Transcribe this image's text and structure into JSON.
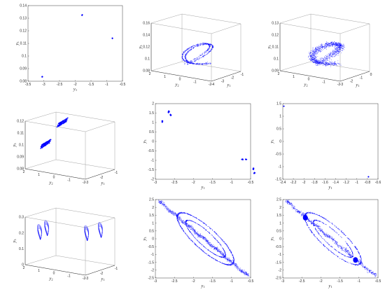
{
  "figure": {
    "accent_color": "#0000ff"
  },
  "chart_data": [
    {
      "id": "a",
      "type": "scatter",
      "dims": "2d",
      "xlabel": "y1",
      "ylabel": "y3",
      "xlim": [
        -3.5,
        -0.5
      ],
      "ylim": [
        0.08,
        0.14
      ],
      "xticks": [
        "-3.5",
        "-3",
        "-2.5",
        "-2",
        "-1.5",
        "-1",
        "-0.5"
      ],
      "yticks": [
        "0.08",
        "0.09",
        "0.1",
        "0.11",
        "0.12",
        "0.13",
        "0.14"
      ],
      "clusters": [
        {
          "x": -3.05,
          "y": 0.0835,
          "spread": [
            0.02,
            0.0004
          ],
          "n": 8
        },
        {
          "x": -1.78,
          "y": 0.1325,
          "spread": [
            0.02,
            0.0005
          ],
          "n": 8
        },
        {
          "x": -0.82,
          "y": 0.114,
          "spread": [
            0.01,
            0.0003
          ],
          "n": 6
        }
      ]
    },
    {
      "id": "b",
      "type": "scatter",
      "dims": "3d",
      "xlabel": "y1",
      "ylabel": "y2",
      "zlabel": "y3",
      "zticks": [
        "0.08",
        "0.1",
        "0.12",
        "0.14",
        "0.16"
      ],
      "xticks": [
        "-4",
        "-3",
        "-2",
        "-1"
      ],
      "yticks": [
        "2",
        "1",
        "0",
        "-1",
        "-2"
      ],
      "shape": "s-curve",
      "points": 900
    },
    {
      "id": "c",
      "type": "scatter",
      "dims": "3d",
      "xlabel": "y1",
      "ylabel": "y2",
      "zlabel": "y3",
      "zticks": [
        "0.09",
        "0.1",
        "0.11",
        "0.12",
        "0.13"
      ],
      "xticks": [
        "-3",
        "-2",
        "-1",
        "0"
      ],
      "yticks": [
        "2",
        "1",
        "0",
        "-1",
        "-2"
      ],
      "shape": "s-curve-diffuse",
      "points": 1400
    },
    {
      "id": "d",
      "type": "scatter",
      "dims": "3d",
      "xlabel": "y1",
      "ylabel": "y2",
      "zlabel": "y3",
      "zticks": [
        "0.08",
        "0.09",
        "0.1",
        "0.11",
        "0.12"
      ],
      "xticks": [
        "-3",
        "-2",
        "-1"
      ],
      "yticks": [
        "2",
        "1",
        "0",
        "-1",
        "-2"
      ],
      "shape": "bands",
      "points": 500
    },
    {
      "id": "e",
      "type": "scatter",
      "dims": "2d",
      "xlabel": "y1",
      "ylabel": "y3",
      "xlim": [
        -3,
        -0.5
      ],
      "ylim": [
        -2,
        2
      ],
      "xticks": [
        "-3",
        "-2.5",
        "-2",
        "-1.5",
        "-1",
        "-0.5"
      ],
      "yticks": [
        "-2",
        "-1.5",
        "-1",
        "-0.5",
        "0",
        "0.5",
        "1",
        "1.5",
        "2"
      ],
      "clusters": [
        {
          "x": -2.65,
          "y": 1.55,
          "spread": [
            0.03,
            0.08
          ],
          "n": 10
        },
        {
          "x": -2.6,
          "y": 1.4,
          "spread": [
            0.02,
            0.06
          ],
          "n": 8
        },
        {
          "x": -2.82,
          "y": 1.05,
          "spread": [
            0.02,
            0.08
          ],
          "n": 10
        },
        {
          "x": -0.72,
          "y": -0.95,
          "spread": [
            0.03,
            0.02
          ],
          "n": 8
        },
        {
          "x": -0.62,
          "y": -0.95,
          "spread": [
            0.03,
            0.02
          ],
          "n": 8
        },
        {
          "x": -0.43,
          "y": -1.45,
          "spread": [
            0.015,
            0.08
          ],
          "n": 10
        },
        {
          "x": -0.4,
          "y": -1.65,
          "spread": [
            0.015,
            0.06
          ],
          "n": 8
        }
      ]
    },
    {
      "id": "f",
      "type": "scatter",
      "dims": "2d",
      "xlabel": "y1",
      "ylabel": "y3",
      "xlim": [
        -2.4,
        -0.6
      ],
      "ylim": [
        -1.5,
        1.5
      ],
      "xticks": [
        "-2.4",
        "-2.2",
        "-2",
        "-1.8",
        "-1.6",
        "-1.4",
        "-1.2",
        "-1",
        "-0.8",
        "-0.6"
      ],
      "yticks": [
        "-1.5",
        "-1",
        "-0.5",
        "0",
        "0.5",
        "1",
        "1.5"
      ],
      "clusters": [
        {
          "x": -2.38,
          "y": 1.4,
          "spread": [
            0.003,
            0.01
          ],
          "n": 3
        },
        {
          "x": -0.78,
          "y": -1.4,
          "spread": [
            0.003,
            0.01
          ],
          "n": 3
        }
      ]
    },
    {
      "id": "g",
      "type": "line",
      "dims": "3d",
      "xlabel": "y1",
      "ylabel": "y2",
      "zlabel": "y3",
      "zticks": [
        "0",
        "0.1",
        "0.2",
        "0.3"
      ],
      "xticks": [
        "-3",
        "-2",
        "-1"
      ],
      "yticks": [
        "2",
        "1",
        "0",
        "-1",
        "-2"
      ],
      "shape": "loops"
    },
    {
      "id": "h",
      "type": "line",
      "dims": "2d",
      "xlabel": "y1",
      "ylabel": "y3",
      "xlim": [
        -3,
        -0.25
      ],
      "ylim": [
        -2.5,
        2.5
      ],
      "xticks": [
        "-3",
        "-2.5",
        "-2",
        "-1.5",
        "-1",
        "-0.5"
      ],
      "yticks": [
        "-2.5",
        "-2",
        "-1.5",
        "-1",
        "-0.5",
        "0",
        "0.5",
        "1",
        "1.5",
        "2",
        "2.5"
      ],
      "shape": "attractor-dense"
    },
    {
      "id": "i",
      "type": "scatter",
      "dims": "2d",
      "xlabel": "y1",
      "ylabel": "y3",
      "xlim": [
        -3,
        -0.25
      ],
      "ylim": [
        -2.5,
        2.5
      ],
      "xticks": [
        "-3",
        "-2.5",
        "-2",
        "-1.5",
        "-1",
        "-0.5"
      ],
      "yticks": [
        "-2.5",
        "-2",
        "-1.5",
        "-1",
        "-0.5",
        "0",
        "0.5",
        "1",
        "1.5",
        "2",
        "2.5"
      ],
      "shape": "attractor-sparse",
      "blobs": [
        {
          "x": -2.35,
          "y": 1.35,
          "rx": 0.07,
          "ry": 0.18
        },
        {
          "x": -0.9,
          "y": -1.35,
          "rx": 0.07,
          "ry": 0.18
        }
      ]
    }
  ]
}
